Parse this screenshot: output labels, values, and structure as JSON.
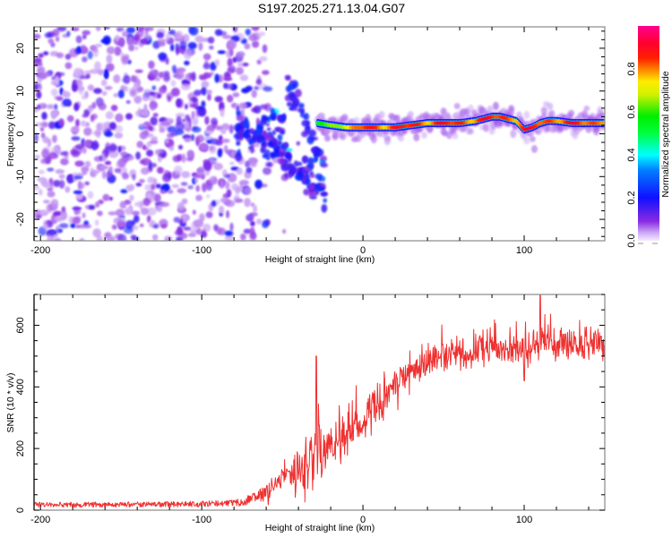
{
  "title": "S197.2025.271.13.04.G07",
  "chart_data": [
    {
      "type": "heatmap",
      "name": "spectrogram",
      "xlabel": "Height of straight line (km)",
      "ylabel": "Frequency (Hz)",
      "xlim": [
        -204,
        150
      ],
      "ylim": [
        -25,
        25
      ],
      "xticks": [
        -200,
        -100,
        0,
        100
      ],
      "xtick_labels": [
        "-200",
        "-100",
        "0",
        "100"
      ],
      "yticks": [
        -20,
        -10,
        0,
        10,
        20
      ],
      "ytick_labels": [
        "-20",
        "-10",
        "0",
        "10",
        "20"
      ],
      "grid": false,
      "colorbar": {
        "label": "Normalized spectral amplitude",
        "range": [
          0,
          1
        ],
        "ticks": [
          0.0,
          0.2,
          0.4,
          0.6,
          0.8
        ],
        "tick_labels": [
          "0.0",
          "0.2",
          "0.4",
          "0.6",
          "0.8"
        ],
        "colormap": [
          "#ffffff",
          "#8a2be2",
          "#0000ff",
          "#00ffff",
          "#00ff00",
          "#ffff00",
          "#ff0000",
          "#ff0090"
        ]
      },
      "features": {
        "noise_region_km": [
          -204,
          -60
        ],
        "noise_amplitude": [
          0.05,
          0.3
        ],
        "transition_region_km": [
          -75,
          -25
        ],
        "transition_freq_hz": [
          -10,
          5
        ],
        "signal_region_km": [
          -30,
          150
        ],
        "signal_track": {
          "x": [
            -28,
            -20,
            -10,
            0,
            10,
            20,
            30,
            40,
            50,
            60,
            70,
            75,
            80,
            85,
            90,
            95,
            100,
            105,
            110,
            115,
            120,
            130,
            140,
            150
          ],
          "freq": [
            2.5,
            2,
            1.5,
            1.5,
            1.5,
            1.5,
            2,
            2.5,
            2.5,
            2.5,
            3,
            3.5,
            4,
            4,
            3.5,
            3,
            1,
            1.5,
            2.5,
            3,
            3,
            2.5,
            2.5,
            2.5
          ],
          "peak_amplitude": 0.9
        }
      }
    },
    {
      "type": "line",
      "name": "snr",
      "xlabel": "Height of straight line (km)",
      "ylabel": "SNR (10 * v/v)",
      "xlim": [
        -204,
        150
      ],
      "ylim": [
        0,
        700
      ],
      "xticks": [
        -200,
        -100,
        0,
        100
      ],
      "xtick_labels": [
        "-200",
        "-100",
        "0",
        "100"
      ],
      "yticks": [
        0,
        200,
        400,
        600
      ],
      "ytick_labels": [
        "0",
        "200",
        "400",
        "600"
      ],
      "grid": false,
      "series": [
        {
          "name": "SNR",
          "color": "#f03030",
          "trend": {
            "x": [
              -204,
              -150,
              -100,
              -75,
              -60,
              -50,
              -40,
              -30,
              -20,
              -10,
              0,
              10,
              20,
              30,
              40,
              60,
              80,
              100,
              120,
              150
            ],
            "y": [
              18,
              18,
              20,
              25,
              55,
              100,
              140,
              170,
              210,
              250,
              290,
              340,
              400,
              450,
              480,
              510,
              520,
              530,
              535,
              540
            ]
          },
          "noise_amplitude": {
            "x": [
              -204,
              -80,
              -60,
              -40,
              -30,
              -20,
              0,
              40,
              150
            ],
            "y": [
              10,
              12,
              30,
              70,
              120,
              80,
              60,
              50,
              50
            ]
          },
          "notable_peaks": [
            {
              "x": -29,
              "y": 500
            },
            {
              "x": 110,
              "y": 705
            },
            {
              "x": 100,
              "y": 420
            }
          ]
        }
      ]
    }
  ]
}
